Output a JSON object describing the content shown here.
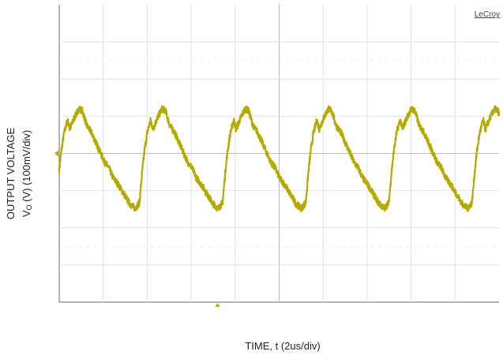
{
  "chart_data": {
    "type": "line",
    "title": "",
    "brand_label": "LeCroy",
    "xlabel": "TIME, t (2us/div)",
    "ylabel_line1": "OUTPUT VOLTAGE",
    "ylabel_line2_prefix": "V",
    "ylabel_line2_sub": "O",
    "ylabel_line2_suffix": " (V) (100mV/div)",
    "x_divisions": 10,
    "y_divisions": 8,
    "x_unit": "us",
    "x_per_div": 2,
    "y_unit": "mV",
    "y_per_div": 100,
    "xlim": [
      0,
      20
    ],
    "ylim": [
      -400,
      400
    ],
    "grid": true,
    "trigger_x": 7.2,
    "series": [
      {
        "color": "#b5ab00",
        "period": 3.78,
        "x": [
          0,
          0.1,
          0.22,
          0.38,
          0.48,
          0.58,
          0.72,
          0.9,
          1.05,
          1.25,
          1.45,
          1.65,
          1.85,
          2.05,
          2.25,
          2.45,
          2.7,
          2.95,
          3.2,
          3.45,
          3.65,
          3.78
        ],
        "values": [
          -45,
          8,
          55,
          90,
          65,
          80,
          100,
          120,
          115,
          75,
          58,
          32,
          5,
          -22,
          -38,
          -65,
          -85,
          -110,
          -135,
          -148,
          -132,
          -45
        ]
      }
    ]
  }
}
